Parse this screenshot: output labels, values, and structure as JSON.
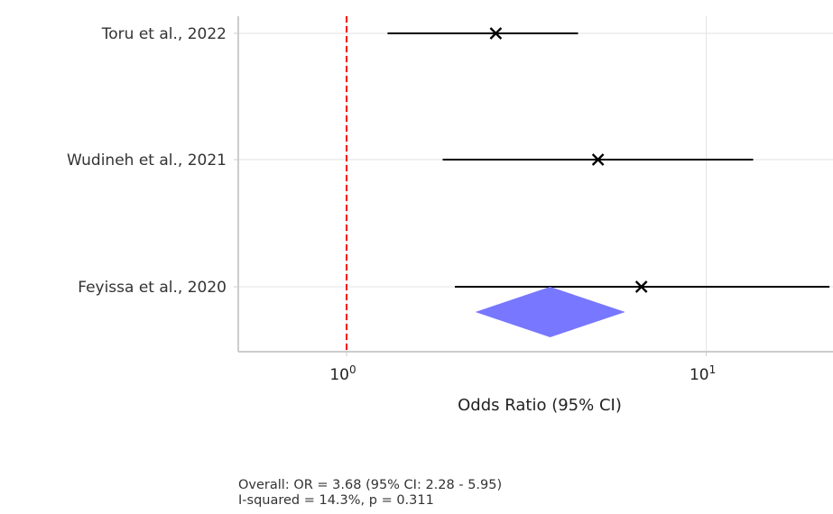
{
  "chart_data": {
    "type": "forest",
    "x_scale": "log",
    "x_axis_label": "Odds Ratio (95% CI)",
    "x_range": [
      0.5,
      22.5
    ],
    "x_ticks": [
      {
        "value": 1,
        "base": "10",
        "exp": "0"
      },
      {
        "value": 10,
        "base": "10",
        "exp": "1"
      }
    ],
    "grid": true,
    "reference_line": {
      "value": 1,
      "color": "#ff0000",
      "style": "dashed"
    },
    "studies": [
      {
        "label": "Toru et al., 2022",
        "or": 2.6,
        "ci_low": 1.3,
        "ci_high": 4.4
      },
      {
        "label": "Wudineh et al., 2021",
        "or": 5.0,
        "ci_low": 1.85,
        "ci_high": 13.5
      },
      {
        "label": "Feyissa et al., 2020",
        "or": 6.6,
        "ci_low": 2.0,
        "ci_high": 22.0
      }
    ],
    "overall": {
      "or": 3.68,
      "ci_low": 2.28,
      "ci_high": 5.95,
      "color": "#7777ff"
    }
  },
  "summary": {
    "line1": "Overall: OR = 3.68 (95% CI: 2.28 - 5.95)",
    "line2": "I-squared = 14.3%, p = 0.311"
  }
}
